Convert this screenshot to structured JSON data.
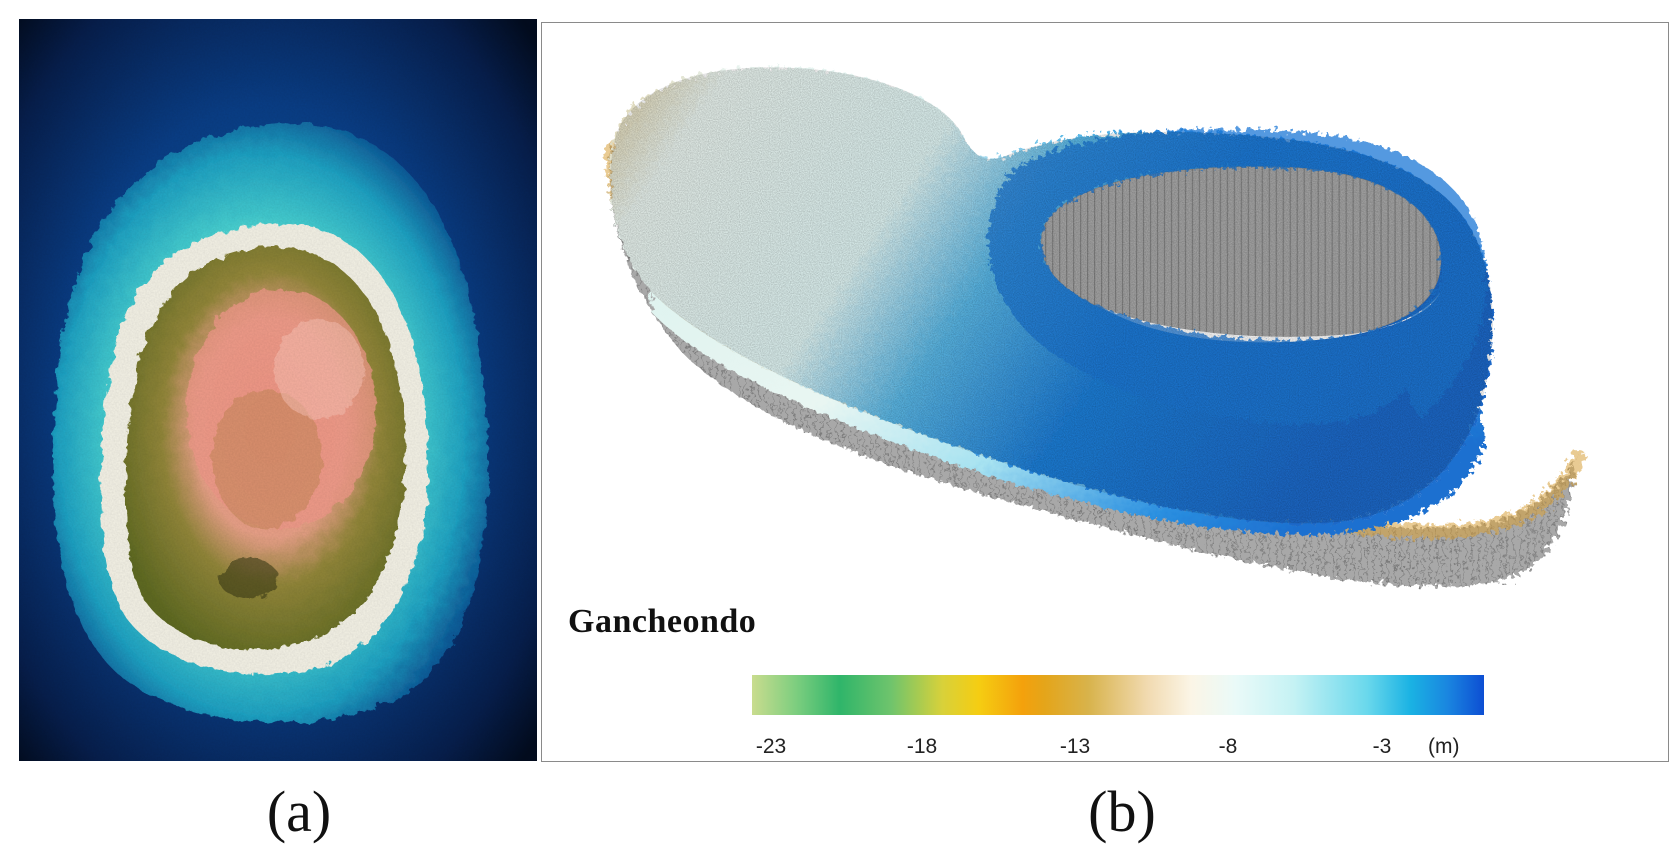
{
  "panel_a": {
    "caption": "(a)"
  },
  "panel_b": {
    "caption": "(b)",
    "site_name": "Gancheondo",
    "colorbar": {
      "ticks": [
        "-23",
        "-18",
        "-13",
        "-8",
        "-3"
      ],
      "unit": "(m)"
    }
  },
  "colors": {
    "deep_water": "#061a3a",
    "shallow_cyan": "#4fd9d4",
    "sand": "#f4f2e6",
    "vegetation": "#7c7f2a",
    "core_pink": "#f08a78",
    "bathy_blue": "#1a86e0",
    "bathy_white": "#eef7f4",
    "bathy_ochre": "#d8a13a",
    "wall_grey": "#a6a6a6"
  }
}
